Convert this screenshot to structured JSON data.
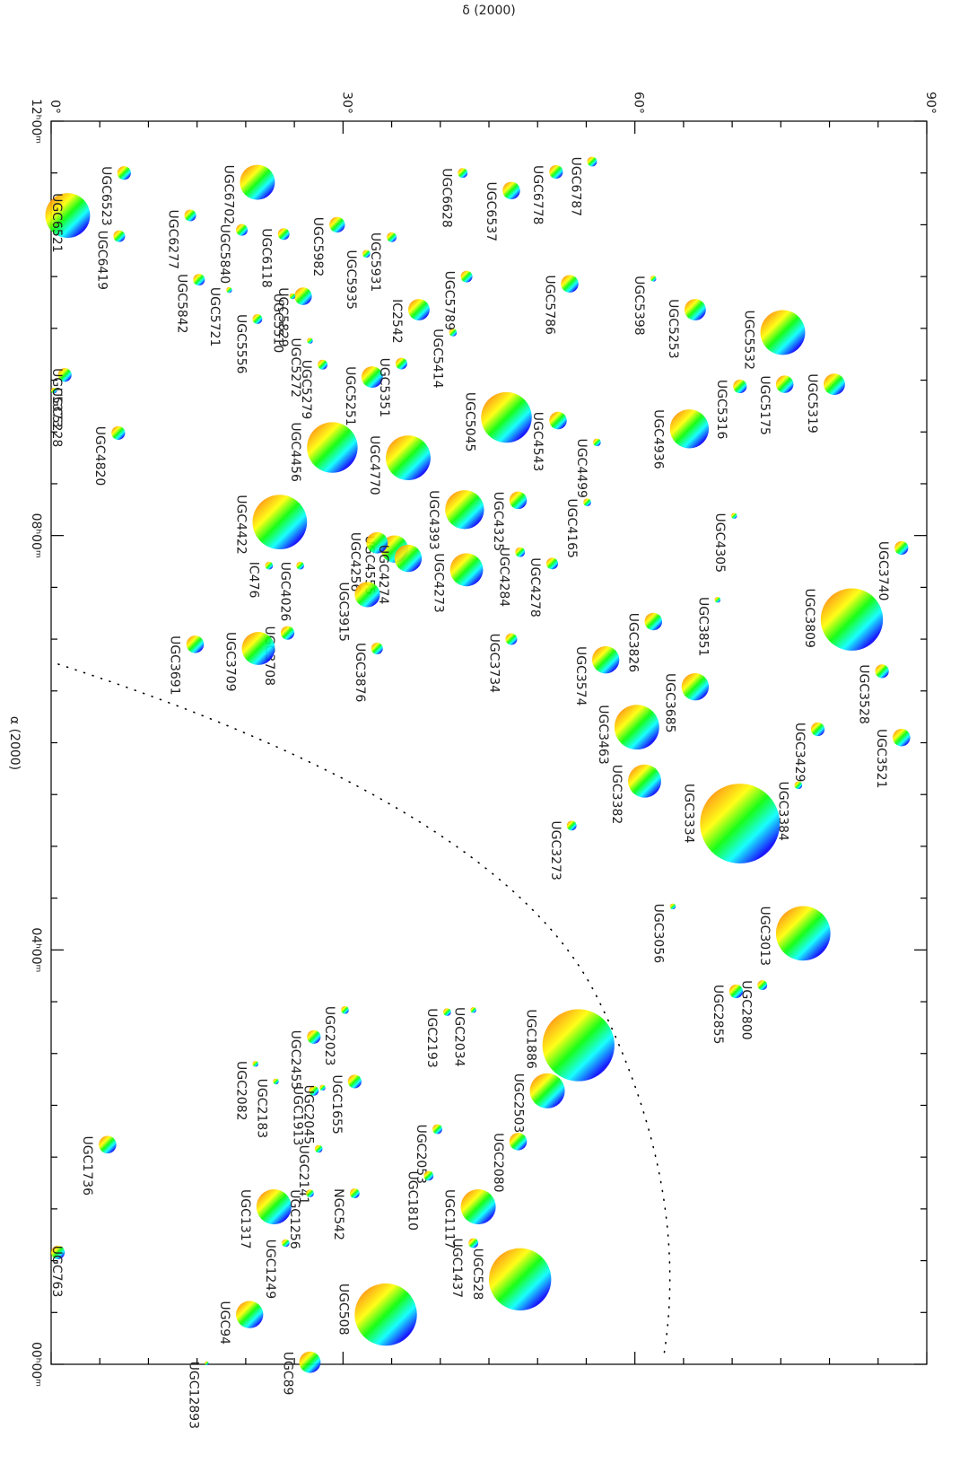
{
  "chart_data": {
    "type": "scatter",
    "xlabel": "δ (2000)",
    "ylabel": "α (2000)",
    "xlim": [
      0,
      90
    ],
    "xticks": [
      {
        "value": 0,
        "label": "0°"
      },
      {
        "value": 30,
        "label": "30°"
      },
      {
        "value": 60,
        "label": "60°"
      },
      {
        "value": 90,
        "label": "90°"
      }
    ],
    "xminorticks": [
      5,
      10,
      15,
      20,
      25,
      35,
      40,
      45,
      50,
      55,
      65,
      70,
      75,
      80,
      85
    ],
    "ylim": [
      0,
      12
    ],
    "yticks": [
      {
        "value": 12,
        "label": "12ʰ00ᵐ"
      },
      {
        "value": 8,
        "label": "08ʰ00ᵐ"
      },
      {
        "value": 4,
        "label": "04ʰ00ᵐ"
      },
      {
        "value": 0,
        "label": "00ʰ00ᵐ"
      }
    ],
    "yminorticks": [
      11.5,
      11,
      10.5,
      10,
      9.5,
      9,
      8.5,
      7.5,
      7,
      6.5,
      6,
      5.5,
      5,
      4.5,
      3.5,
      3,
      2.5,
      2,
      1.5,
      1,
      0.5
    ],
    "colors": [
      "#ff0000",
      "#ffa500",
      "#ffff00",
      "#00ff00",
      "#00ffff",
      "#0000ff",
      "#4b0082"
    ],
    "labels": [
      "UGC6523",
      "UGC6521",
      "UGC6419",
      "UGC6277",
      "UGC6702",
      "UGC5840",
      "UGC6118",
      "UGC5982",
      "UGC5931",
      "UGC5935",
      "UGC5829",
      "UGC5842",
      "UGC5721",
      "UGC5556",
      "UGC5510",
      "UGC5272",
      "UGC5279",
      "UGC5251",
      "UGC5351",
      "IC2542",
      "UGC5414",
      "UGC5789",
      "UGC5786",
      "UGC6628",
      "UGC6537",
      "UGC6778",
      "UGC6787",
      "UGC5373",
      "UGC5228",
      "UGC4820",
      "UGC5398",
      "UGC5253",
      "UGC5532",
      "UGC5316",
      "UGC5175",
      "UGC5319",
      "UGC4936",
      "UGC5045",
      "UGC4543",
      "UGC4499",
      "UGC4456",
      "UGC4770",
      "UGC4393",
      "UGC4325",
      "UGC4165",
      "UGC4305",
      "UGC3740",
      "UGC4422",
      "UGC4555",
      "UGC4256",
      "UGC4274",
      "UGC4273",
      "UGC4284",
      "UGC4278",
      "IC476",
      "UGC4026",
      "UGC3915",
      "UGC3876",
      "UGC3734",
      "UGC3708",
      "UGC3709",
      "UGC3691",
      "UGC3826",
      "UGC3851",
      "UGC3809",
      "UGC3528",
      "UGC3521",
      "UGC3574",
      "UGC3685",
      "UGC3429",
      "UGC3463",
      "UGC3384",
      "UGC3382",
      "UGC3334",
      "UGC3273",
      "UGC3056",
      "UGC3013",
      "UGC2800",
      "UGC2855",
      "UGC1886",
      "UGC2503",
      "UGC2080",
      "UGC2034",
      "UGC2193",
      "UGC2053",
      "UGC2023",
      "UGC2455",
      "UGC1655",
      "UGC1913",
      "UGC2082",
      "UGC2183",
      "UGC2045",
      "UGC2141",
      "UGC1736",
      "NGC542",
      "UGC1810",
      "UGC1117",
      "UGC1437",
      "UGC528",
      "UGC1317",
      "UGC1256",
      "UGC1249",
      "UGC508",
      "UGC763",
      "UGC94",
      "UGC89",
      "UGC12893"
    ],
    "x": [
      7.5,
      1.7,
      7.0,
      14.3,
      21.2,
      19.6,
      23.9,
      29.4,
      35.0,
      32.4,
      25.9,
      15.2,
      18.3,
      21.2,
      24.8,
      26.6,
      27.9,
      33.0,
      36.0,
      37.8,
      41.3,
      42.7,
      53.3,
      42.3,
      47.3,
      51.9,
      55.6,
      1.4,
      0.3,
      6.9,
      61.9,
      66.2,
      75.2,
      70.8,
      75.4,
      80.5,
      65.6,
      46.8,
      52.1,
      56.1,
      28.9,
      36.7,
      42.5,
      48.0,
      55.1,
      70.2,
      87.4,
      23.5,
      35.3,
      33.5,
      36.7,
      42.7,
      48.2,
      51.5,
      22.4,
      25.6,
      32.5,
      33.5,
      47.3,
      24.3,
      21.3,
      14.8,
      61.9,
      68.5,
      82.3,
      85.4,
      87.4,
      57.0,
      66.2,
      78.8,
      60.2,
      76.8,
      61.0,
      70.8,
      53.5,
      63.9,
      77.3,
      73.1,
      70.4,
      54.2,
      51.0,
      48.0,
      43.4,
      40.7,
      39.7,
      30.2,
      27.0,
      31.2,
      27.0,
      21.0,
      23.1,
      27.9,
      27.5,
      5.8,
      31.2,
      38.8,
      43.9,
      43.4,
      48.2,
      22.9,
      26.6,
      24.1,
      34.4,
      0.7,
      20.4,
      26.6,
      16.0
    ],
    "values": [
      11.5,
      11.09,
      10.89,
      11.09,
      11.41,
      10.95,
      10.91,
      11.0,
      10.88,
      10.72,
      10.31,
      10.47,
      10.37,
      10.09,
      10.31,
      9.88,
      9.65,
      9.53,
      9.66,
      10.18,
      9.96,
      10.5,
      10.43,
      11.5,
      11.33,
      11.51,
      11.61,
      9.55,
      9.4,
      8.99,
      10.48,
      10.18,
      9.96,
      9.44,
      9.46,
      9.46,
      9.03,
      9.14,
      9.11,
      8.9,
      8.85,
      8.75,
      8.25,
      8.34,
      8.32,
      8.19,
      7.88,
      8.13,
      7.87,
      7.93,
      7.78,
      7.67,
      7.84,
      7.73,
      7.71,
      7.71,
      7.43,
      6.91,
      7.0,
      7.06,
      6.91,
      6.95,
      7.17,
      7.38,
      7.19,
      6.69,
      6.05,
      6.8,
      6.54,
      6.13,
      6.15,
      5.59,
      5.63,
      5.22,
      5.2,
      4.42,
      4.16,
      3.66,
      3.6,
      3.08,
      2.64,
      2.15,
      3.42,
      3.4,
      2.27,
      3.42,
      3.16,
      2.73,
      2.64,
      2.9,
      2.73,
      2.67,
      2.08,
      2.12,
      1.65,
      1.82,
      1.52,
      1.17,
      0.82,
      1.52,
      1.65,
      1.17,
      0.48,
      1.08,
      0.48,
      0.02,
      0.01
    ],
    "sizes": [
      0.7,
      2.3,
      0.6,
      0.6,
      1.8,
      0.6,
      0.6,
      0.8,
      0.5,
      0.4,
      0.9,
      0.6,
      0.3,
      0.5,
      0.3,
      0.3,
      0.5,
      1.1,
      0.6,
      1.1,
      0.4,
      0.6,
      0.9,
      0.5,
      0.9,
      0.7,
      0.5,
      0.7,
      0.3,
      0.7,
      0.3,
      1.1,
      2.3,
      0.7,
      0.9,
      1.1,
      2.0,
      2.6,
      0.9,
      0.4,
      2.6,
      2.3,
      2.0,
      0.9,
      0.4,
      0.3,
      0.7,
      2.8,
      1.4,
      1.1,
      1.4,
      1.7,
      0.5,
      0.6,
      0.4,
      0.4,
      1.3,
      0.6,
      0.6,
      0.7,
      1.7,
      0.9,
      0.9,
      0.3,
      3.2,
      0.7,
      0.9,
      1.4,
      1.4,
      0.7,
      2.3,
      0.4,
      1.7,
      4.1,
      0.5,
      0.3,
      2.8,
      0.5,
      0.7,
      3.7,
      1.8,
      0.9,
      0.3,
      0.4,
      0.5,
      0.4,
      0.7,
      0.7,
      0.5,
      0.3,
      0.3,
      0.3,
      0.4,
      0.9,
      0.5,
      0.5,
      1.8,
      0.5,
      3.2,
      1.8,
      0.4,
      0.4,
      3.2,
      0.7,
      1.4,
      1.1,
      0.2
    ]
  }
}
